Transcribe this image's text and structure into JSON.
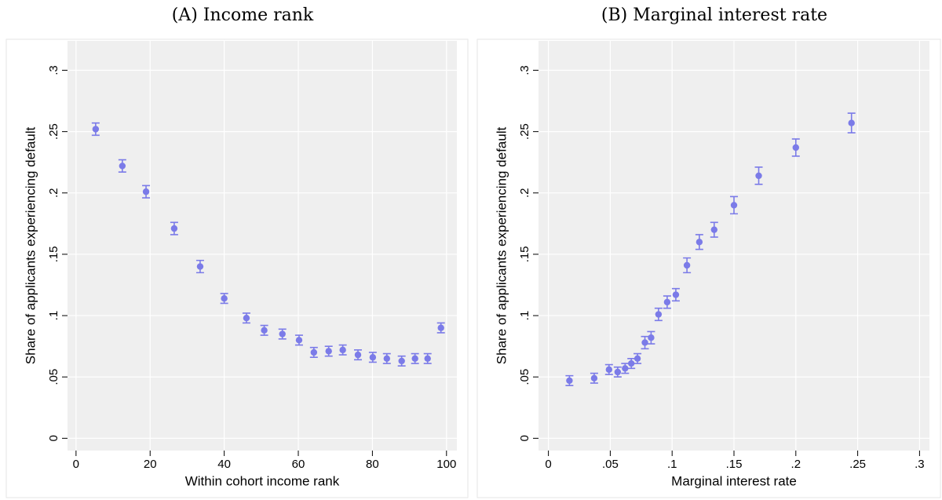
{
  "chart_data": [
    {
      "type": "scatter",
      "title": "(A) Income rank",
      "x_label": "Within cohort income rank",
      "y_label": "Share of applicants experiencing default",
      "x": [
        5.3,
        12.5,
        18.9,
        26.5,
        33.5,
        40.0,
        46.0,
        50.8,
        55.7,
        60.2,
        64.2,
        68.2,
        72.0,
        76.1,
        80.1,
        83.9,
        87.9,
        91.5,
        94.9,
        98.5
      ],
      "values": [
        0.252,
        0.222,
        0.201,
        0.171,
        0.14,
        0.114,
        0.098,
        0.088,
        0.085,
        0.08,
        0.07,
        0.071,
        0.072,
        0.068,
        0.066,
        0.065,
        0.063,
        0.065,
        0.065,
        0.09
      ],
      "errors": [
        0.005,
        0.005,
        0.005,
        0.005,
        0.005,
        0.004,
        0.004,
        0.004,
        0.004,
        0.004,
        0.004,
        0.004,
        0.004,
        0.004,
        0.004,
        0.004,
        0.004,
        0.004,
        0.004,
        0.004
      ],
      "color": "#7b7be8",
      "xlim": [
        -2.3,
        102.8
      ],
      "ylim": [
        -0.01,
        0.324
      ],
      "xticks": [
        0,
        20,
        40,
        60,
        80,
        100
      ],
      "yticks": [
        0,
        {
          "value": 0.05,
          "label": ".05"
        },
        {
          "value": 0.1,
          "label": ".1"
        },
        {
          "value": 0.15,
          "label": ".15"
        },
        {
          "value": 0.2,
          "label": ".2"
        },
        {
          "value": 0.25,
          "label": ".25"
        },
        {
          "value": 0.3,
          "label": ".3"
        }
      ],
      "grid": true
    },
    {
      "type": "scatter",
      "title": "(B) Marginal interest rate",
      "x_label": "Marginal interest rate",
      "y_label": "Share of applicants experiencing default",
      "x": [
        0.017,
        0.037,
        0.049,
        0.056,
        0.062,
        0.067,
        0.072,
        0.078,
        0.083,
        0.089,
        0.096,
        0.103,
        0.112,
        0.122,
        0.134,
        0.15,
        0.17,
        0.2,
        0.245
      ],
      "values": [
        0.047,
        0.049,
        0.056,
        0.054,
        0.057,
        0.061,
        0.065,
        0.078,
        0.082,
        0.101,
        0.111,
        0.117,
        0.141,
        0.16,
        0.17,
        0.19,
        0.214,
        0.237,
        0.257
      ],
      "errors": [
        0.004,
        0.004,
        0.004,
        0.004,
        0.004,
        0.004,
        0.004,
        0.005,
        0.005,
        0.005,
        0.005,
        0.005,
        0.006,
        0.006,
        0.006,
        0.007,
        0.007,
        0.007,
        0.008
      ],
      "color": "#7b7be8",
      "xlim": [
        -0.008,
        0.308
      ],
      "ylim": [
        -0.01,
        0.324
      ],
      "xticks": [
        0,
        {
          "value": 0.05,
          "label": ".05"
        },
        {
          "value": 0.1,
          "label": ".1"
        },
        {
          "value": 0.15,
          "label": ".15"
        },
        {
          "value": 0.2,
          "label": ".2"
        },
        {
          "value": 0.25,
          "label": ".25"
        },
        {
          "value": 0.3,
          "label": ".3"
        }
      ],
      "yticks": [
        0,
        {
          "value": 0.05,
          "label": ".05"
        },
        {
          "value": 0.1,
          "label": ".1"
        },
        {
          "value": 0.15,
          "label": ".15"
        },
        {
          "value": 0.2,
          "label": ".2"
        },
        {
          "value": 0.25,
          "label": ".25"
        },
        {
          "value": 0.3,
          "label": ".3"
        }
      ],
      "grid": true
    }
  ]
}
